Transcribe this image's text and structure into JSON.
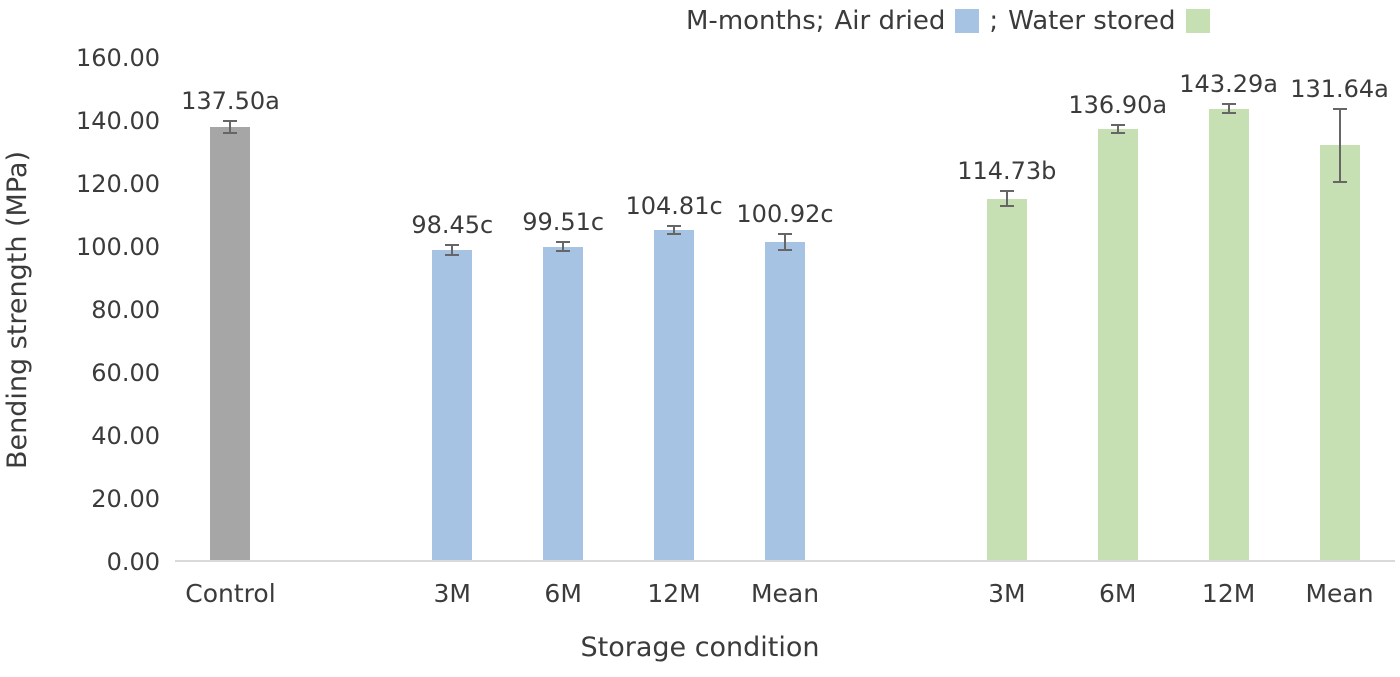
{
  "chart_data": {
    "type": "bar",
    "title": "",
    "xlabel": "Storage condition",
    "ylabel": "Bending strength (MPa)",
    "ylim": [
      0,
      160
    ],
    "ytick_step": 20,
    "ytick_decimals": 2,
    "grid": false,
    "legend_position": "top",
    "legend_note": "M-months;",
    "legend_separator": ";",
    "legend": [
      {
        "label": "Air dried",
        "color": "#a6c3e3"
      },
      {
        "label": "Water stored",
        "color": "#c6e0b4"
      }
    ],
    "axis_line_color": "#d9d9d9",
    "error_bar_color": "#666666",
    "groups": [
      {
        "name": "Control",
        "color": "#a6a6a6",
        "bars": [
          {
            "category": "Control",
            "value": 137.5,
            "error": 2.0,
            "label": "137.50a"
          }
        ]
      },
      {
        "name": "Air dried",
        "color": "#a6c3e3",
        "bars": [
          {
            "category": "3M",
            "value": 98.45,
            "error": 1.5,
            "label": "98.45c"
          },
          {
            "category": "6M",
            "value": 99.51,
            "error": 1.5,
            "label": "99.51c"
          },
          {
            "category": "12M",
            "value": 104.81,
            "error": 1.2,
            "label": "104.81c"
          },
          {
            "category": "Mean",
            "value": 100.92,
            "error": 2.5,
            "label": "100.92c"
          }
        ]
      },
      {
        "name": "Water stored",
        "color": "#c6e0b4",
        "bars": [
          {
            "category": "3M",
            "value": 114.73,
            "error": 2.5,
            "label": "114.73b"
          },
          {
            "category": "6M",
            "value": 136.9,
            "error": 1.3,
            "label": "136.90a"
          },
          {
            "category": "12M",
            "value": 143.29,
            "error": 1.5,
            "label": "143.29a"
          },
          {
            "category": "Mean",
            "value": 131.64,
            "error": 11.5,
            "label": "131.64a"
          }
        ]
      }
    ]
  }
}
